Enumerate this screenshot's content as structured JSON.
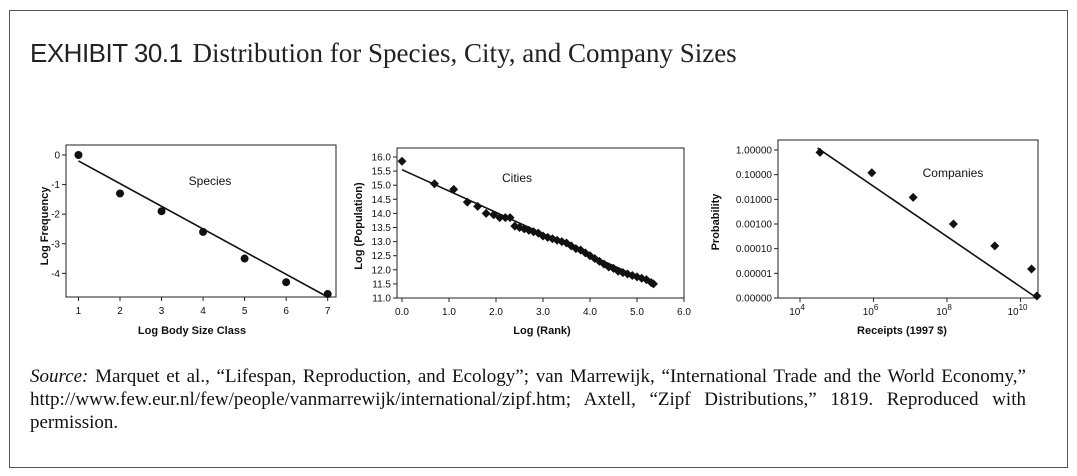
{
  "exhibit": {
    "label": "EXHIBIT 30.1",
    "title": "Distribution for Species, City, and Company Sizes"
  },
  "source": {
    "lead": "Source:",
    "text": "Marquet et al., “Lifespan, Reproduction, and Ecology”; van Marrewijk, “International Trade and the World Economy,” http://www.few.eur.nl/few/people/vanmarrewijk/international/zipf.htm; Axtell, “Zipf Distributions,” 1819. Reproduced with permission."
  },
  "chart_data": [
    {
      "type": "scatter",
      "title": "Species",
      "xlabel": "Log Body Size Class",
      "ylabel": "Log Frequency",
      "xlim": [
        0.7,
        7.2
      ],
      "ylim": [
        -4.8,
        0
      ],
      "xticks": [
        1,
        2,
        3,
        4,
        5,
        6,
        7
      ],
      "yticks": [
        0,
        -1,
        -2,
        -3,
        -4
      ],
      "marker": "circle",
      "points": [
        [
          1,
          0
        ],
        [
          2,
          -1.3
        ],
        [
          3,
          -1.9
        ],
        [
          4,
          -2.6
        ],
        [
          5,
          -3.5
        ],
        [
          6,
          -4.3
        ],
        [
          7,
          -4.7
        ]
      ],
      "fit": [
        [
          1,
          -0.2
        ],
        [
          7,
          -4.8
        ]
      ]
    },
    {
      "type": "scatter",
      "title": "Cities",
      "xlabel": "Log (Rank)",
      "ylabel": "Log (Population)",
      "xlim": [
        0,
        6
      ],
      "ylim": [
        11,
        16
      ],
      "xticks": [
        0,
        1,
        2,
        3,
        4,
        5,
        6
      ],
      "xticklabels": [
        "0.0",
        "1.0",
        "2.0",
        "3.0",
        "4.0",
        "5.0",
        "6.0"
      ],
      "yticks": [
        11,
        11.5,
        12,
        12.5,
        13,
        13.5,
        14,
        14.5,
        15,
        15.5,
        16
      ],
      "yticklabels": [
        "11.0",
        "11.5",
        "12.0",
        "12.5",
        "13.0",
        "13.5",
        "14.0",
        "14.5",
        "15.0",
        "15.5",
        "16.0"
      ],
      "marker": "diamond",
      "points": [
        [
          0,
          15.85
        ],
        [
          0.69,
          15.05
        ],
        [
          1.1,
          14.85
        ],
        [
          1.39,
          14.4
        ],
        [
          1.61,
          14.25
        ],
        [
          1.79,
          14.0
        ],
        [
          1.95,
          13.95
        ],
        [
          2.08,
          13.85
        ],
        [
          2.2,
          13.85
        ],
        [
          2.3,
          13.85
        ],
        [
          2.4,
          13.55
        ],
        [
          2.5,
          13.5
        ],
        [
          2.6,
          13.45
        ],
        [
          2.7,
          13.4
        ],
        [
          2.8,
          13.35
        ],
        [
          2.9,
          13.3
        ],
        [
          3.0,
          13.2
        ],
        [
          3.1,
          13.15
        ],
        [
          3.2,
          13.1
        ],
        [
          3.3,
          13.05
        ],
        [
          3.4,
          13.0
        ],
        [
          3.5,
          12.95
        ],
        [
          3.6,
          12.85
        ],
        [
          3.7,
          12.75
        ],
        [
          3.8,
          12.7
        ],
        [
          3.9,
          12.6
        ],
        [
          4.0,
          12.5
        ],
        [
          4.1,
          12.4
        ],
        [
          4.2,
          12.3
        ],
        [
          4.3,
          12.2
        ],
        [
          4.4,
          12.1
        ],
        [
          4.5,
          12.05
        ],
        [
          4.6,
          11.95
        ],
        [
          4.7,
          11.9
        ],
        [
          4.8,
          11.85
        ],
        [
          4.9,
          11.8
        ],
        [
          5.0,
          11.75
        ],
        [
          5.1,
          11.7
        ],
        [
          5.2,
          11.65
        ],
        [
          5.3,
          11.55
        ],
        [
          5.35,
          11.5
        ]
      ],
      "fit": [
        [
          0,
          15.55
        ],
        [
          5.35,
          11.5
        ]
      ]
    },
    {
      "type": "scatter",
      "title": "Companies",
      "xlabel": "Receipts (1997 $)",
      "ylabel": "Probability",
      "xscale": "log",
      "yscale": "log",
      "xlim": [
        10000,
        30000000000
      ],
      "ylim": [
        1e-06,
        1
      ],
      "xticks": [
        10000,
        1000000,
        100000000,
        10000000000
      ],
      "xticklabels": [
        [
          "10",
          "4"
        ],
        [
          "10",
          "6"
        ],
        [
          "10",
          "8"
        ],
        [
          "10",
          "10"
        ]
      ],
      "yticks": [
        1e-06,
        1e-05,
        0.0001,
        0.001,
        0.01,
        0.1,
        1
      ],
      "yticklabels": [
        "0.00000",
        "0.00001",
        "0.00010",
        "0.00100",
        "0.01000",
        "0.10000",
        "1.00000"
      ],
      "marker": "diamond",
      "points": [
        [
          35000,
          0.8
        ],
        [
          900000,
          0.12
        ],
        [
          12000000,
          0.012
        ],
        [
          150000000,
          0.001
        ],
        [
          2000000000,
          0.00013
        ],
        [
          20000000000,
          1.5e-05
        ],
        [
          28000000000,
          1.2e-06
        ]
      ],
      "fit": [
        [
          30000,
          1.2
        ],
        [
          28000000000,
          1e-06
        ]
      ]
    }
  ]
}
